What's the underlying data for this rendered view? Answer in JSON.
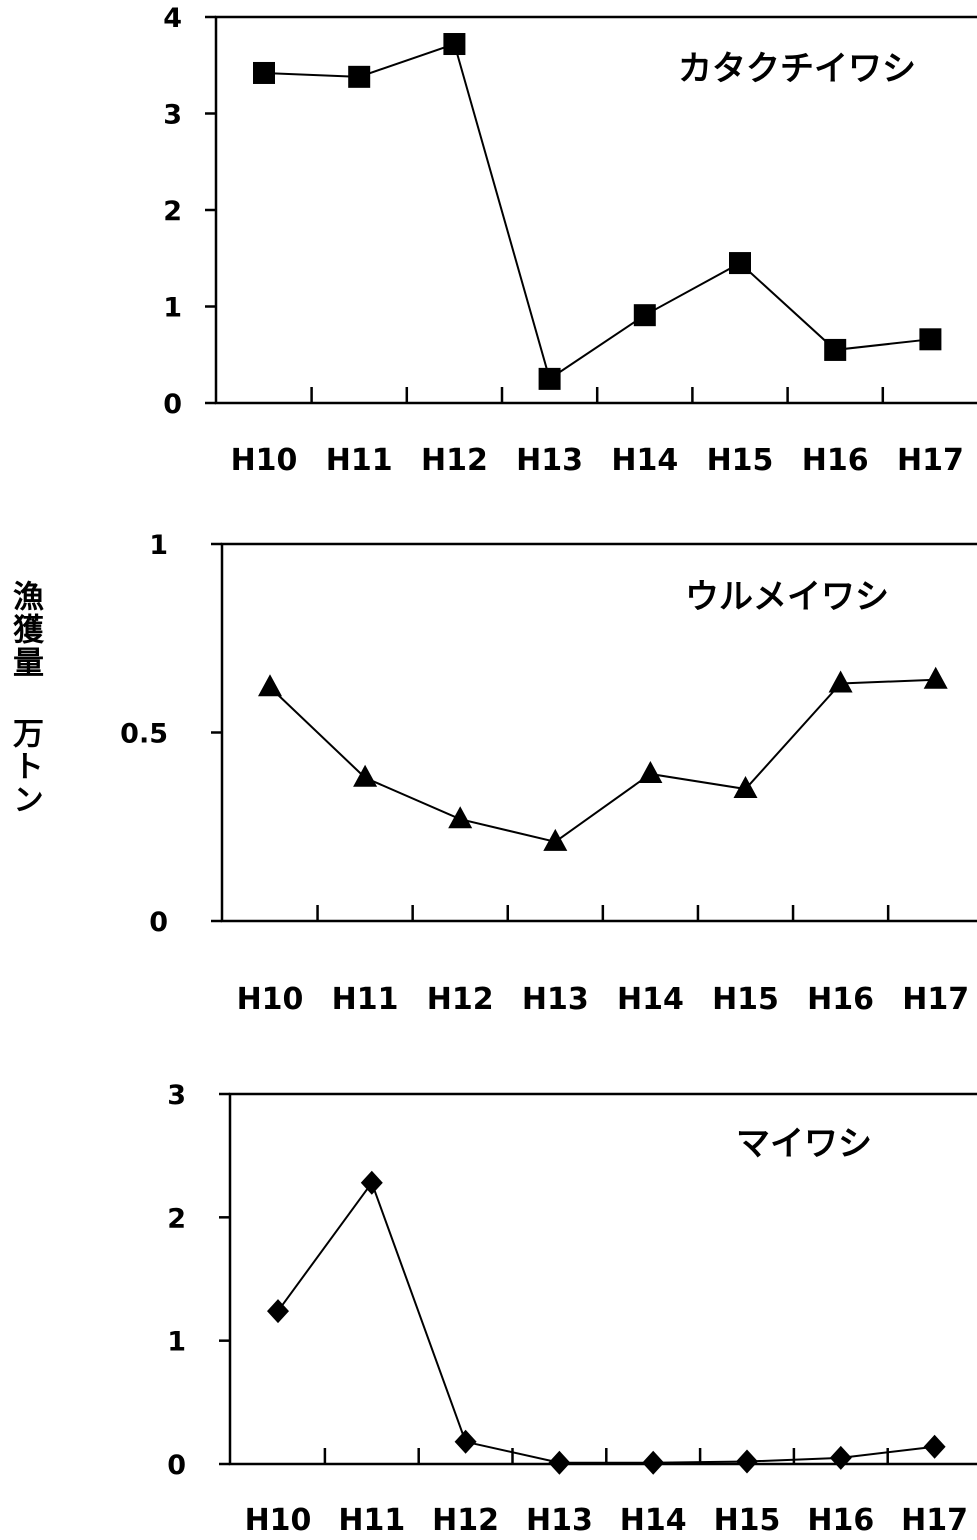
{
  "chart_data": [
    {
      "type": "line",
      "title": "カタクチイワシ",
      "categories": [
        "H10",
        "H11",
        "H12",
        "H13",
        "H14",
        "H15",
        "H16",
        "H17"
      ],
      "series": [
        {
          "name": "カタクチイワシ",
          "marker": "square",
          "values": [
            3.42,
            3.38,
            3.72,
            0.25,
            0.91,
            1.45,
            0.55,
            0.66
          ]
        }
      ],
      "ylim": [
        0,
        4
      ],
      "yticks": [
        "0",
        "1",
        "2",
        "3",
        "4"
      ],
      "ytick_values": [
        0,
        1,
        2,
        3,
        4
      ]
    },
    {
      "type": "line",
      "title": "ウルメイワシ",
      "categories": [
        "H10",
        "H11",
        "H12",
        "H13",
        "H14",
        "H15",
        "H16",
        "H17"
      ],
      "series": [
        {
          "name": "ウルメイワシ",
          "marker": "triangle",
          "values": [
            0.62,
            0.38,
            0.27,
            0.21,
            0.39,
            0.35,
            0.63,
            0.64
          ]
        }
      ],
      "ylim": [
        0,
        1
      ],
      "yticks": [
        "0",
        "0.5",
        "1"
      ],
      "ytick_values": [
        0,
        0.5,
        1
      ]
    },
    {
      "type": "line",
      "title": "マイワシ",
      "categories": [
        "H10",
        "H11",
        "H12",
        "H13",
        "H14",
        "H15",
        "H16",
        "H17"
      ],
      "series": [
        {
          "name": "マイワシ",
          "marker": "diamond",
          "values": [
            1.24,
            2.28,
            0.18,
            0.01,
            0.01,
            0.02,
            0.05,
            0.14
          ]
        }
      ],
      "ylim": [
        0,
        3
      ],
      "yticks": [
        "0",
        "1",
        "2",
        "3"
      ],
      "ytick_values": [
        0,
        1,
        2,
        3
      ]
    }
  ],
  "ylabel": "漁獲量 万トン"
}
